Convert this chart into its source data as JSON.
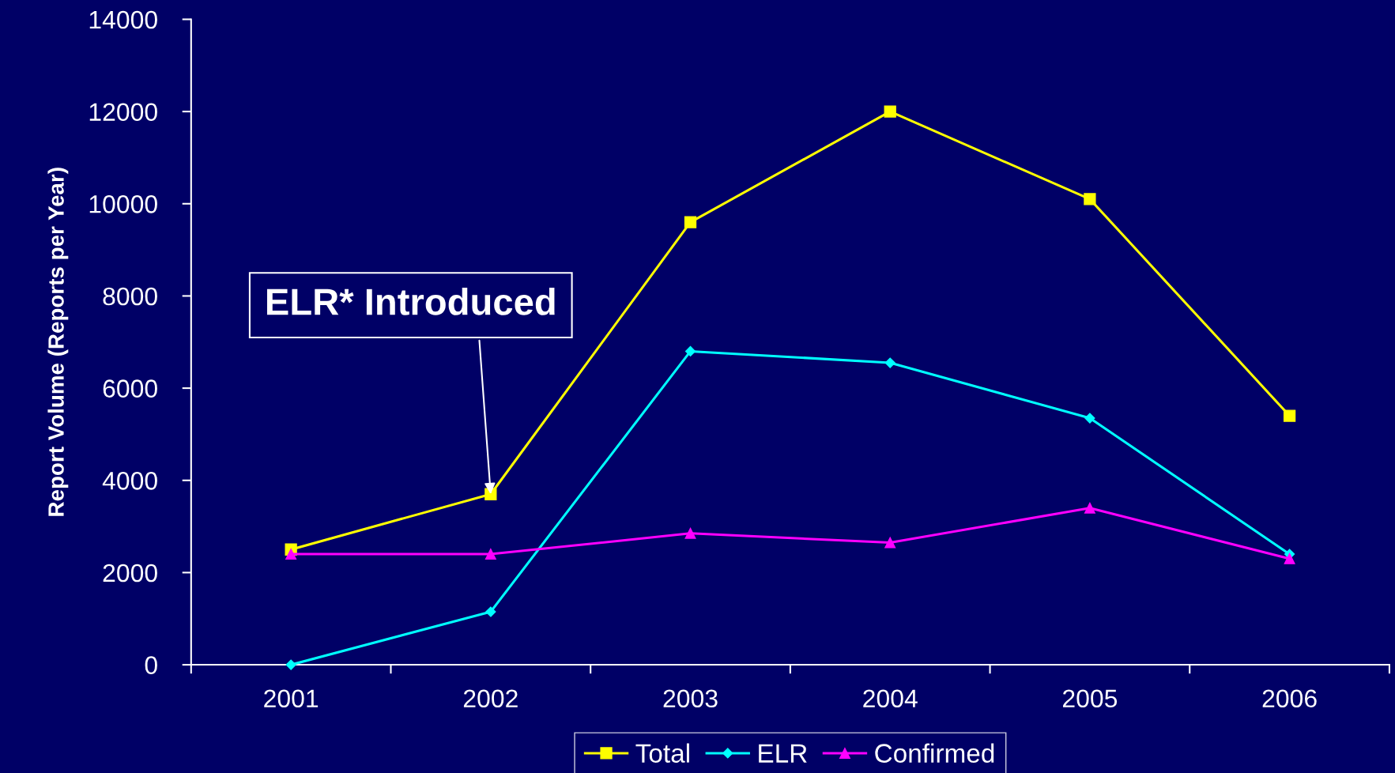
{
  "chart_data": {
    "type": "line",
    "ylabel": "Report Volume (Reports per Year)",
    "categories": [
      "2001",
      "2002",
      "2003",
      "2004",
      "2005",
      "2006"
    ],
    "series": [
      {
        "name": "Total",
        "color": "#ffff00",
        "marker": "square",
        "values": [
          2500,
          3700,
          9600,
          12000,
          10100,
          5400
        ]
      },
      {
        "name": "ELR",
        "color": "#00ffff",
        "marker": "diamond",
        "values": [
          0,
          1150,
          6800,
          6550,
          5350,
          2400
        ]
      },
      {
        "name": "Confirmed",
        "color": "#ff00ff",
        "marker": "triangle",
        "values": [
          2400,
          2400,
          2850,
          2650,
          3400,
          2300
        ]
      }
    ],
    "ylim": [
      0,
      14000
    ],
    "yticks": [
      0,
      2000,
      4000,
      6000,
      8000,
      10000,
      12000,
      14000
    ],
    "legend": "bottom",
    "line_style": "solid",
    "annotations": [
      {
        "text": "ELR* Introduced",
        "x": "2002",
        "y": 3700
      }
    ]
  }
}
